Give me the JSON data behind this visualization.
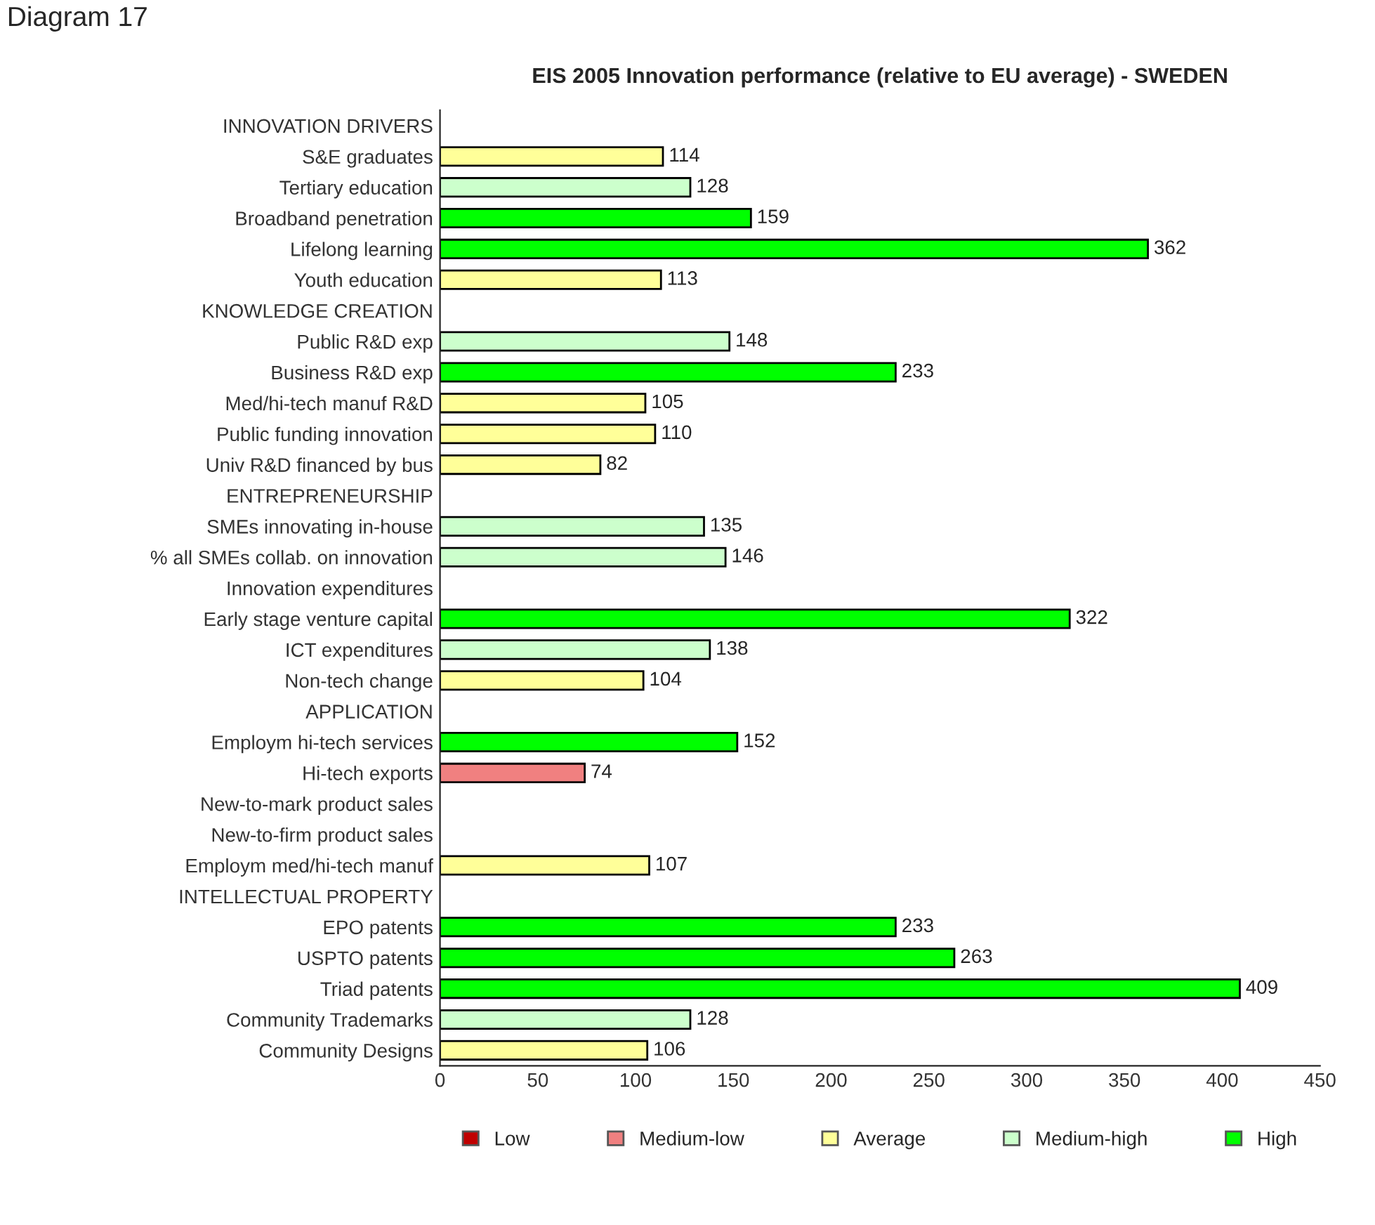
{
  "chart_data": {
    "type": "bar",
    "orientation": "horizontal",
    "title": "EIS 2005 Innovation performance (relative to EU average) - SWEDEN",
    "annotations": [
      "Diagram 17"
    ],
    "categories": [
      "INNOVATION DRIVERS",
      "S&E graduates",
      "Tertiary education",
      "Broadband penetration",
      "Lifelong learning",
      "Youth education",
      "KNOWLEDGE CREATION",
      "Public R&D exp",
      "Business R&D exp",
      "Med/hi-tech manuf R&D",
      "Public funding innovation",
      "Univ R&D financed by bus",
      "ENTREPRENEURSHIP",
      "SMEs innovating in-house",
      "% all SMEs collab. on innovation",
      "Innovation expenditures",
      "Early stage venture capital",
      "ICT expenditures",
      "Non-tech change",
      "APPLICATION",
      "Employm hi-tech services",
      "Hi-tech exports",
      "New-to-mark product sales",
      "New-to-firm product sales",
      "Employm med/hi-tech manuf",
      "INTELLECTUAL PROPERTY",
      "EPO patents",
      "USPTO patents",
      "Triad patents",
      "Community Trademarks",
      "Community Designs"
    ],
    "series": [
      {
        "name": "Low",
        "color": "#c00000",
        "values": [
          null,
          null,
          null,
          null,
          null,
          null,
          null,
          null,
          null,
          null,
          null,
          null,
          null,
          null,
          null,
          null,
          null,
          null,
          null,
          null,
          null,
          null,
          null,
          null,
          null,
          null,
          null,
          null,
          null,
          null,
          null
        ]
      },
      {
        "name": "Medium-low",
        "color": "#f08080",
        "values": [
          null,
          null,
          null,
          null,
          null,
          null,
          null,
          null,
          null,
          null,
          null,
          null,
          null,
          null,
          null,
          null,
          null,
          null,
          null,
          null,
          null,
          74,
          null,
          null,
          null,
          null,
          null,
          null,
          null,
          null,
          null
        ]
      },
      {
        "name": "Average",
        "color": "#ffff99",
        "values": [
          null,
          114,
          null,
          null,
          null,
          113,
          null,
          null,
          null,
          105,
          110,
          82,
          null,
          null,
          null,
          null,
          null,
          null,
          104,
          null,
          null,
          null,
          null,
          null,
          107,
          null,
          null,
          null,
          null,
          null,
          106
        ]
      },
      {
        "name": "Medium-high",
        "color": "#ccffcc",
        "values": [
          null,
          null,
          128,
          null,
          null,
          null,
          null,
          148,
          null,
          null,
          null,
          null,
          null,
          135,
          146,
          null,
          null,
          138,
          null,
          null,
          null,
          null,
          null,
          null,
          null,
          null,
          null,
          null,
          null,
          128,
          null
        ]
      },
      {
        "name": "High",
        "color": "#00ff00",
        "values": [
          null,
          null,
          null,
          159,
          362,
          null,
          null,
          null,
          233,
          null,
          null,
          null,
          null,
          null,
          null,
          null,
          322,
          null,
          null,
          null,
          152,
          null,
          null,
          null,
          null,
          null,
          233,
          263,
          409,
          null,
          null
        ]
      }
    ],
    "xlim": [
      0,
      450
    ],
    "xticks": [
      0,
      50,
      100,
      150,
      200,
      250,
      300,
      350,
      400,
      450
    ],
    "data_labels": true,
    "legend": "bottom",
    "grid": false
  }
}
